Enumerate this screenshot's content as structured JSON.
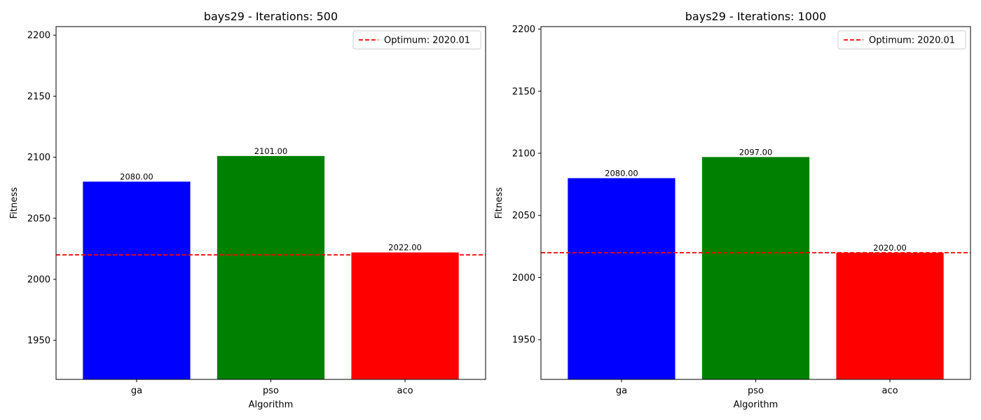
{
  "chart_data": [
    {
      "type": "bar",
      "title": "bays29 - Iterations: 500",
      "xlabel": "Algorithm",
      "ylabel": "Fitness",
      "categories": [
        "ga",
        "pso",
        "aco"
      ],
      "values": [
        2080.0,
        2101.0,
        2022.0
      ],
      "value_labels": [
        "2080.00",
        "2101.00",
        "2022.00"
      ],
      "colors": [
        "#0000ff",
        "#008000",
        "#ff0000"
      ],
      "ylim": [
        1918,
        2207
      ],
      "yticks": [
        1950,
        2000,
        2050,
        2100,
        2150,
        2200
      ],
      "reference_line": {
        "value": 2020.01,
        "color": "#ff0000",
        "style": "dashed",
        "label": "Optimum: 2020.01"
      },
      "legend": "top-right",
      "grid": false
    },
    {
      "type": "bar",
      "title": "bays29 - Iterations: 1000",
      "xlabel": "Algorithm",
      "ylabel": "Fitness",
      "categories": [
        "ga",
        "pso",
        "aco"
      ],
      "values": [
        2080.0,
        2097.0,
        2020.0
      ],
      "value_labels": [
        "2080.00",
        "2097.00",
        "2020.00"
      ],
      "colors": [
        "#0000ff",
        "#008000",
        "#ff0000"
      ],
      "ylim": [
        1918,
        2202
      ],
      "yticks": [
        1950,
        2000,
        2050,
        2100,
        2150,
        2200
      ],
      "reference_line": {
        "value": 2020.01,
        "color": "#ff0000",
        "style": "dashed",
        "label": "Optimum: 2020.01"
      },
      "legend": "top-right",
      "grid": false
    }
  ]
}
